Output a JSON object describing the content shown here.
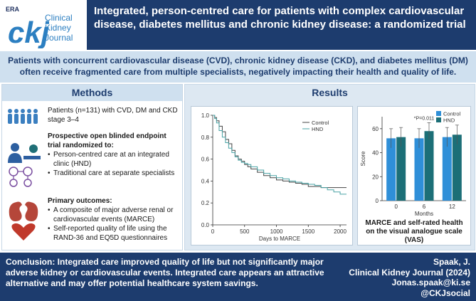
{
  "header": {
    "logo_badge": "ERA",
    "logo_letters": "ckj",
    "logo_line1": "Clinical",
    "logo_line2": "Kidney",
    "logo_line3": "Journal",
    "title": "Integrated, person-centred care for patients with complex cardiovascular disease, diabetes mellitus and chronic kidney disease: a randomized trial"
  },
  "banner": "Patients with concurrent cardiovascular disease (CVD), chronic kidney disease (CKD), and diabetes mellitus (DM) often receive fragmented care from multiple specialists, negatively impacting their health and quality of life.",
  "methods": {
    "heading": "Methods",
    "patients": "Patients (n=131) with CVD, DM and CKD stage 3–4",
    "trial_heading": "Prospective open blinded endpoint trial randomized to:",
    "arm1": "Person-centred care at an integrated clinic (HND)",
    "arm2": "Traditional care at separate specialists",
    "outcomes_heading": "Primary outcomes:",
    "outcome1": "A composite of major adverse renal or cardiovascular events (MARCE)",
    "outcome2": "Self-reported quality of life using the RAND-36 and EQ5D questionnaires"
  },
  "results": {
    "heading": "Results",
    "caption": "MARCE and self-rated health on the visual analogue scale (VAS)"
  },
  "colors": {
    "navy": "#1d3c6e",
    "light_blue": "#cfe0ef",
    "control_bar": "#2f8fd8",
    "hnd_bar": "#1c6f77"
  },
  "chart_data": [
    {
      "type": "line",
      "xlabel": "Days to MARCE",
      "ylabel": "",
      "xlim": [
        0,
        2100
      ],
      "ylim": [
        0,
        1.0
      ],
      "x_ticks": [
        0,
        500,
        1000,
        1500,
        2000
      ],
      "y_ticks": [
        0,
        0.2,
        0.4,
        0.6,
        0.8,
        1.0
      ],
      "legend": "top-right",
      "series": [
        {
          "name": "Control",
          "color": "#444444",
          "x": [
            0,
            30,
            60,
            100,
            150,
            200,
            250,
            300,
            350,
            400,
            450,
            500,
            550,
            600,
            700,
            800,
            900,
            1000,
            1100,
            1200,
            1300,
            1400,
            1500,
            1600,
            1700,
            1800,
            2000,
            2100
          ],
          "y": [
            1.0,
            0.98,
            0.95,
            0.9,
            0.85,
            0.78,
            0.74,
            0.68,
            0.63,
            0.6,
            0.58,
            0.55,
            0.53,
            0.51,
            0.48,
            0.45,
            0.43,
            0.41,
            0.4,
            0.39,
            0.38,
            0.37,
            0.35,
            0.35,
            0.34,
            0.34,
            0.34,
            0.34
          ]
        },
        {
          "name": "HND",
          "color": "#4aa3a5",
          "x": [
            0,
            30,
            60,
            100,
            150,
            200,
            250,
            300,
            350,
            400,
            450,
            500,
            550,
            600,
            700,
            800,
            900,
            1000,
            1100,
            1200,
            1300,
            1400,
            1500,
            1600,
            1700,
            1800,
            1900,
            2000,
            2100
          ],
          "y": [
            1.0,
            0.97,
            0.93,
            0.86,
            0.8,
            0.75,
            0.7,
            0.66,
            0.62,
            0.59,
            0.57,
            0.56,
            0.55,
            0.53,
            0.5,
            0.47,
            0.45,
            0.43,
            0.42,
            0.4,
            0.39,
            0.38,
            0.37,
            0.36,
            0.34,
            0.32,
            0.3,
            0.28,
            0.28
          ]
        }
      ]
    },
    {
      "type": "bar",
      "xlabel": "Months",
      "ylabel": "Score",
      "ylim": [
        0,
        70
      ],
      "y_ticks": [
        0,
        20,
        40,
        60
      ],
      "categories": [
        "0",
        "6",
        "12"
      ],
      "legend": "top-right",
      "annotation": "*P=0.011",
      "series": [
        {
          "name": "Control",
          "values": [
            52,
            52,
            53
          ],
          "errors": [
            8,
            8,
            8
          ]
        },
        {
          "name": "HND",
          "values": [
            53,
            58,
            55
          ],
          "errors": [
            8,
            7,
            8
          ]
        }
      ]
    }
  ],
  "conclusion": "Conclusion: Integrated care improved quality of life but not significantly major adverse kidney or cardiovascular events. Integrated care appears an attractive alternative and may offer potential healthcare system savings.",
  "citation": {
    "author": "Spaak, J.",
    "journal": "Clinical Kidney Journal (2024)",
    "email": "Jonas.spaak@ki.se",
    "social": "@CKJsocial"
  }
}
